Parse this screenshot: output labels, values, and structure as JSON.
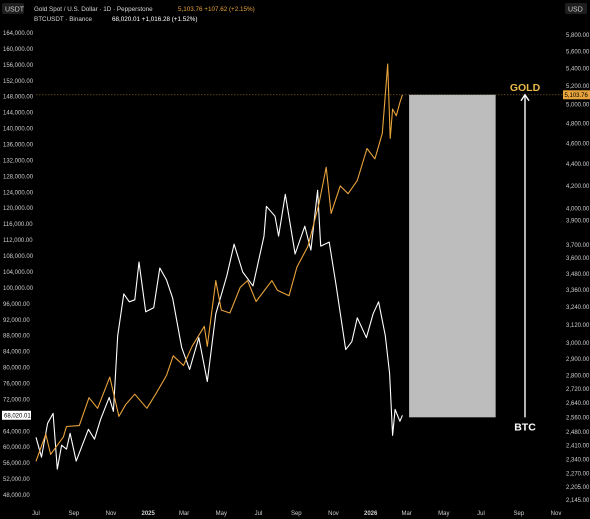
{
  "header": {
    "left_unit": "USDT",
    "right_unit": "USD",
    "line1_symbol": "Gold Spot / U.S. Dollar · 1D · Pepperstone",
    "line1_values": "5,103.76  +107.62 (+2.15%)",
    "line2_symbol": "BTCUSDT · Binance",
    "line2_values": "68,020.01  +1,016.28 (+1.52%)"
  },
  "colors": {
    "background": "#000000",
    "btc_line": "#ffffff",
    "gold_line": "#e8a33c",
    "gold_label": "#e8b84a",
    "projection_box": "#bdbdbd",
    "axis_text": "#cfcfcf"
  },
  "chart_data": {
    "type": "line",
    "x_ticks": [
      "Jul",
      "Sep",
      "Nov",
      "2025",
      "Mar",
      "May",
      "Jul",
      "Sep",
      "Nov",
      "2026",
      "Mar",
      "May",
      "Jul",
      "Sep",
      "Nov"
    ],
    "left_axis_ticks": [
      48000,
      52000,
      56000,
      60000,
      64000,
      68000,
      72000,
      76000,
      80000,
      84000,
      88000,
      92000,
      96000,
      100000,
      104000,
      108000,
      112000,
      116000,
      120000,
      124000,
      128000,
      132000,
      136000,
      140000,
      144000,
      148000,
      152000,
      156000,
      160000,
      164000
    ],
    "right_axis_ticks": [
      2145,
      2205,
      2270,
      2340,
      2410,
      2480,
      2560,
      2640,
      2720,
      2800,
      2900,
      3000,
      3120,
      3240,
      3360,
      3480,
      3600,
      3700,
      3900,
      4000,
      4200,
      4400,
      4600,
      4800,
      5000,
      5200,
      5400,
      5600,
      5800
    ],
    "left_axis_label_format": "0,0.00",
    "right_axis_label_format": "0,0.00",
    "series": [
      {
        "name": "BTCUSDT",
        "axis": "left",
        "points": [
          [
            "2024-07-01",
            62500
          ],
          [
            "2024-07-10",
            57500
          ],
          [
            "2024-07-20",
            66000
          ],
          [
            "2024-07-29",
            68500
          ],
          [
            "2024-08-05",
            54500
          ],
          [
            "2024-08-12",
            60500
          ],
          [
            "2024-08-20",
            59500
          ],
          [
            "2024-08-26",
            63500
          ],
          [
            "2024-09-05",
            56500
          ],
          [
            "2024-09-15",
            60500
          ],
          [
            "2024-09-25",
            64500
          ],
          [
            "2024-10-05",
            62000
          ],
          [
            "2024-10-15",
            67000
          ],
          [
            "2024-10-29",
            72500
          ],
          [
            "2024-11-05",
            69000
          ],
          [
            "2024-11-12",
            88000
          ],
          [
            "2024-11-22",
            98500
          ],
          [
            "2024-12-01",
            96500
          ],
          [
            "2024-12-10",
            97000
          ],
          [
            "2024-12-17",
            106500
          ],
          [
            "2024-12-28",
            94000
          ],
          [
            "2025-01-10",
            95000
          ],
          [
            "2025-01-20",
            105000
          ],
          [
            "2025-01-31",
            102000
          ],
          [
            "2025-02-10",
            97500
          ],
          [
            "2025-02-25",
            85000
          ],
          [
            "2025-03-10",
            79500
          ],
          [
            "2025-03-25",
            87500
          ],
          [
            "2025-04-08",
            76500
          ],
          [
            "2025-04-22",
            93500
          ],
          [
            "2025-05-10",
            103000
          ],
          [
            "2025-05-22",
            111000
          ],
          [
            "2025-06-05",
            104000
          ],
          [
            "2025-06-22",
            100500
          ],
          [
            "2025-07-10",
            113000
          ],
          [
            "2025-07-14",
            120500
          ],
          [
            "2025-07-28",
            118000
          ],
          [
            "2025-08-03",
            113000
          ],
          [
            "2025-08-14",
            123500
          ],
          [
            "2025-08-30",
            108500
          ],
          [
            "2025-09-15",
            115500
          ],
          [
            "2025-09-25",
            109500
          ],
          [
            "2025-10-06",
            124500
          ],
          [
            "2025-10-11",
            110500
          ],
          [
            "2025-10-25",
            111500
          ],
          [
            "2025-11-05",
            101000
          ],
          [
            "2025-11-21",
            84500
          ],
          [
            "2025-12-01",
            86500
          ],
          [
            "2025-12-10",
            92500
          ],
          [
            "2025-12-25",
            87500
          ],
          [
            "2026-01-05",
            93500
          ],
          [
            "2026-01-14",
            96500
          ],
          [
            "2026-01-25",
            88000
          ],
          [
            "2026-02-01",
            78500
          ],
          [
            "2026-02-06",
            63000
          ],
          [
            "2026-02-10",
            69500
          ],
          [
            "2026-02-18",
            66500
          ],
          [
            "2026-02-22",
            68020
          ]
        ]
      },
      {
        "name": "XAUUSD",
        "axis": "right",
        "points": [
          [
            "2024-07-01",
            2330
          ],
          [
            "2024-07-17",
            2470
          ],
          [
            "2024-07-25",
            2365
          ],
          [
            "2024-08-15",
            2455
          ],
          [
            "2024-08-20",
            2510
          ],
          [
            "2024-09-10",
            2515
          ],
          [
            "2024-09-26",
            2670
          ],
          [
            "2024-10-10",
            2610
          ],
          [
            "2024-10-30",
            2790
          ],
          [
            "2024-11-14",
            2565
          ],
          [
            "2024-11-25",
            2630
          ],
          [
            "2024-12-10",
            2690
          ],
          [
            "2024-12-30",
            2610
          ],
          [
            "2025-01-15",
            2700
          ],
          [
            "2025-01-31",
            2800
          ],
          [
            "2025-02-11",
            2920
          ],
          [
            "2025-02-28",
            2860
          ],
          [
            "2025-03-14",
            2980
          ],
          [
            "2025-04-03",
            3110
          ],
          [
            "2025-04-08",
            2980
          ],
          [
            "2025-04-22",
            3430
          ],
          [
            "2025-05-01",
            3220
          ],
          [
            "2025-05-15",
            3200
          ],
          [
            "2025-06-01",
            3380
          ],
          [
            "2025-06-13",
            3430
          ],
          [
            "2025-06-27",
            3280
          ],
          [
            "2025-07-23",
            3430
          ],
          [
            "2025-08-01",
            3360
          ],
          [
            "2025-08-20",
            3320
          ],
          [
            "2025-09-02",
            3530
          ],
          [
            "2025-09-20",
            3690
          ],
          [
            "2025-10-08",
            4040
          ],
          [
            "2025-10-20",
            4370
          ],
          [
            "2025-10-28",
            3960
          ],
          [
            "2025-11-12",
            4200
          ],
          [
            "2025-11-25",
            4130
          ],
          [
            "2025-12-10",
            4250
          ],
          [
            "2025-12-26",
            4550
          ],
          [
            "2026-01-08",
            4450
          ],
          [
            "2026-01-20",
            4700
          ],
          [
            "2026-01-29",
            5450
          ],
          [
            "2026-02-02",
            4650
          ],
          [
            "2026-02-06",
            4950
          ],
          [
            "2026-02-12",
            4880
          ],
          [
            "2026-02-18",
            5020
          ],
          [
            "2026-02-22",
            5103.76
          ]
        ]
      }
    ],
    "annotations": {
      "gold_label": "GOLD",
      "btc_label": "BTC",
      "projection_range_right": [
        2560,
        5103.76
      ],
      "projection_dates": [
        "2026-03-05",
        "2026-07-25"
      ],
      "gold_price_line": 5103.76,
      "btc_price_line": 68020.01
    },
    "price_tags": {
      "left": "68,020.01",
      "right": "5,103.76"
    },
    "right_axis_scale": "log",
    "legend": "top-left",
    "grid": false
  }
}
